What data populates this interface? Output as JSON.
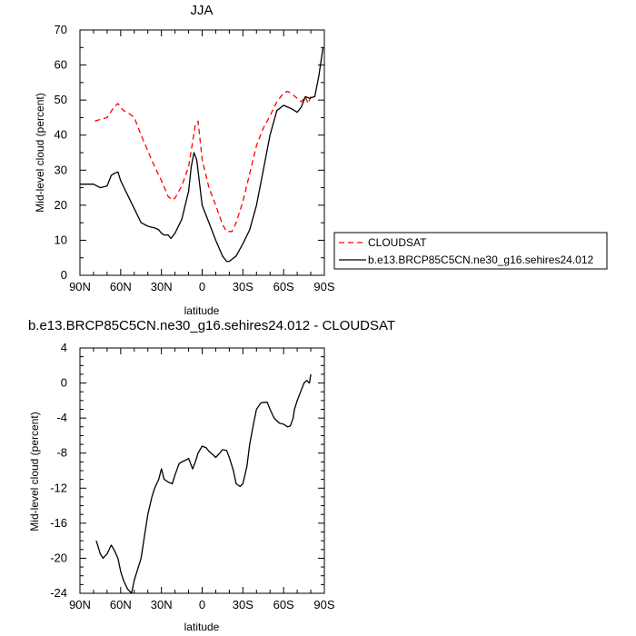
{
  "chart_data": [
    {
      "type": "line",
      "title": "JJA",
      "xlabel": "latitude",
      "ylabel": "Mid-level cloud (percent)",
      "x_ticks": [
        90,
        60,
        30,
        0,
        -30,
        -60,
        -90
      ],
      "x_tick_labels": [
        "90N",
        "60N",
        "30N",
        "0",
        "30S",
        "60S",
        "90S"
      ],
      "xlim": [
        90,
        -90
      ],
      "y_ticks": [
        0,
        10,
        20,
        30,
        40,
        50,
        60,
        70
      ],
      "y_tick_labels": [
        "0",
        "10",
        "20",
        "30",
        "40",
        "50",
        "60",
        "70"
      ],
      "ylim": [
        0,
        70
      ],
      "grid": false,
      "legend": "outside-right",
      "legend_entries": [
        "CLOUDSAT",
        "b.e13.BRCP85C5CN.ne30_g16.sehires24.012"
      ],
      "series": [
        {
          "name": "CLOUDSAT",
          "color": "#ff0000",
          "style": "dashed",
          "x": [
            79,
            75,
            70,
            65,
            62,
            58,
            55,
            50,
            45,
            40,
            35,
            30,
            25,
            22,
            20,
            15,
            10,
            7,
            5,
            3,
            0,
            -5,
            -10,
            -15,
            -18,
            -22,
            -25,
            -30,
            -35,
            -40,
            -45,
            -50,
            -55,
            -60,
            -63,
            -67,
            -70,
            -73,
            -76,
            -78,
            -80
          ],
          "y": [
            44,
            44.5,
            45,
            48,
            49,
            47,
            46.5,
            45,
            40,
            35.5,
            31,
            27,
            22.5,
            21.5,
            22,
            25.5,
            31,
            38,
            43,
            44,
            33,
            25,
            20,
            14.5,
            12.5,
            12.5,
            15,
            21,
            29,
            37,
            42,
            45.5,
            49.5,
            52,
            52.5,
            51.5,
            50.5,
            49.5,
            51,
            49,
            51
          ]
        },
        {
          "name": "b.e13.BRCP85C5CN.ne30_g16.sehires24.012",
          "color": "#000000",
          "style": "solid",
          "x": [
            90,
            85,
            80,
            75,
            70,
            67,
            65,
            62,
            60,
            55,
            50,
            45,
            40,
            35,
            32,
            30,
            28,
            25,
            23,
            20,
            15,
            10,
            8,
            6,
            4,
            0,
            -5,
            -10,
            -15,
            -18,
            -20,
            -25,
            -30,
            -35,
            -40,
            -45,
            -50,
            -55,
            -60,
            -63,
            -66,
            -70,
            -73,
            -76,
            -79,
            -83,
            -86,
            -89
          ],
          "y": [
            26,
            26,
            26,
            25,
            25.5,
            28.5,
            29,
            29.5,
            27,
            23,
            19,
            15,
            14,
            13.5,
            13,
            12,
            11.5,
            11.5,
            10.5,
            12,
            16,
            24,
            31,
            35,
            33,
            20,
            15,
            10,
            5.5,
            4,
            4,
            5.5,
            9,
            13,
            20,
            30,
            40,
            47,
            48.5,
            48,
            47.5,
            46.5,
            48,
            51,
            50.5,
            51,
            57,
            65
          ]
        }
      ]
    },
    {
      "type": "line",
      "title": "b.e13.BRCP85C5CN.ne30_g16.sehires24.012 - CLOUDSAT",
      "xlabel": "latitude",
      "ylabel": "Mid-level cloud (percent)",
      "x_ticks": [
        90,
        60,
        30,
        0,
        -30,
        -60,
        -90
      ],
      "x_tick_labels": [
        "90N",
        "60N",
        "30N",
        "0",
        "30S",
        "60S",
        "90S"
      ],
      "xlim": [
        90,
        -90
      ],
      "y_ticks": [
        4,
        0,
        -4,
        -8,
        -12,
        -16,
        -20,
        -24
      ],
      "y_tick_labels": [
        "4",
        "0",
        "-4",
        "-8",
        "-12",
        "-16",
        "-20",
        "-24"
      ],
      "ylim": [
        -24,
        4
      ],
      "grid": false,
      "series": [
        {
          "color": "#000000",
          "style": "solid",
          "x": [
            78,
            75,
            73,
            70,
            67,
            65,
            62,
            60,
            58,
            55,
            52,
            50,
            47,
            45,
            42,
            40,
            37,
            35,
            32,
            30,
            28,
            25,
            22,
            20,
            17,
            15,
            12,
            10,
            7,
            5,
            3,
            0,
            -3,
            -5,
            -8,
            -10,
            -13,
            -15,
            -18,
            -20,
            -23,
            -25,
            -28,
            -30,
            -33,
            -35,
            -38,
            -40,
            -43,
            -45,
            -48,
            -50,
            -53,
            -55,
            -57,
            -60,
            -63,
            -65,
            -67,
            -68,
            -70,
            -73,
            -75,
            -77,
            -79,
            -80
          ],
          "y": [
            -18,
            -19.5,
            -20,
            -19.5,
            -18.5,
            -19,
            -20,
            -21.5,
            -22.5,
            -23.5,
            -24,
            -22.5,
            -21,
            -20,
            -17,
            -15,
            -13,
            -12,
            -11,
            -9.8,
            -11,
            -11.3,
            -11.5,
            -10.5,
            -9.2,
            -9,
            -8.8,
            -8.6,
            -9.8,
            -9,
            -8,
            -7.2,
            -7.4,
            -7.8,
            -8.2,
            -8.5,
            -8,
            -7.6,
            -7.7,
            -8.5,
            -10,
            -11.5,
            -11.8,
            -11.5,
            -9.5,
            -7,
            -4.5,
            -3,
            -2.3,
            -2.2,
            -2.2,
            -3,
            -4,
            -4.3,
            -4.6,
            -4.7,
            -5,
            -4.9,
            -4,
            -3,
            -2,
            -0.8,
            0,
            0.3,
            0,
            1
          ]
        }
      ]
    }
  ]
}
